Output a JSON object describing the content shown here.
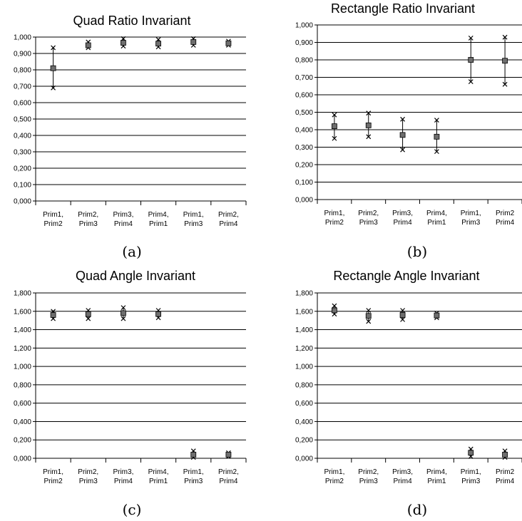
{
  "chart_data": [
    {
      "type": "scatter",
      "title": "Quad Ratio Invariant",
      "caption": "(a)",
      "categories": [
        [
          "Prim1,",
          "Prim2"
        ],
        [
          "Prim2,",
          "Prim3"
        ],
        [
          "Prim3,",
          "Prim4"
        ],
        [
          "Prim4,",
          "Prim1"
        ],
        [
          "Prim1,",
          "Prim3"
        ],
        [
          "Prim2,",
          "Prim4"
        ]
      ],
      "yticks": [
        "0,000",
        "0,100",
        "0,200",
        "0,300",
        "0,400",
        "0,500",
        "0,600",
        "0,700",
        "0,800",
        "0,900",
        "1,000"
      ],
      "ylim": [
        0,
        1.0
      ],
      "grid": true,
      "mean": [
        0.81,
        0.95,
        0.965,
        0.96,
        0.97,
        0.962
      ],
      "min": [
        0.69,
        0.935,
        0.945,
        0.94,
        0.95,
        0.95
      ],
      "max": [
        0.935,
        0.97,
        0.99,
        0.985,
        0.99,
        0.975
      ]
    },
    {
      "type": "scatter",
      "title": "Rectangle Ratio Invariant",
      "caption": "(b)",
      "categories": [
        [
          "Prim1,",
          "Prim2"
        ],
        [
          "Prim2,",
          "Prim3"
        ],
        [
          "Prim3,",
          "Prim4"
        ],
        [
          "Prim4,",
          "Prim1"
        ],
        [
          "Prim1,",
          "Prim3"
        ],
        [
          "Prim2",
          "Prim4"
        ]
      ],
      "yticks": [
        "0,000",
        "0,100",
        "0,200",
        "0,300",
        "0,400",
        "0,500",
        "0,600",
        "0,700",
        "0,800",
        "0,900",
        "1,000"
      ],
      "ylim": [
        0,
        1.0
      ],
      "grid": true,
      "mean": [
        0.42,
        0.425,
        0.37,
        0.36,
        0.8,
        0.795
      ],
      "min": [
        0.35,
        0.36,
        0.285,
        0.275,
        0.675,
        0.66
      ],
      "max": [
        0.485,
        0.495,
        0.46,
        0.455,
        0.925,
        0.93
      ]
    },
    {
      "type": "scatter",
      "title": "Quad Angle Invariant",
      "caption": "(c)",
      "categories": [
        [
          "Prim1,",
          "Prim2"
        ],
        [
          "Prim2,",
          "Prim3"
        ],
        [
          "Prim3,",
          "Prim4"
        ],
        [
          "Prim4,",
          "Prim1"
        ],
        [
          "Prim1,",
          "Prim3"
        ],
        [
          "Prim2,",
          "Prim4"
        ]
      ],
      "yticks": [
        "0,000",
        "0,200",
        "0,400",
        "0,600",
        "0,800",
        "1,000",
        "1,200",
        "1,400",
        "1,600",
        "1,800"
      ],
      "ylim": [
        0,
        1.8
      ],
      "grid": true,
      "mean": [
        1.56,
        1.57,
        1.58,
        1.57,
        0.04,
        0.04
      ],
      "min": [
        1.52,
        1.52,
        1.52,
        1.53,
        0.01,
        0.02
      ],
      "max": [
        1.6,
        1.61,
        1.64,
        1.61,
        0.08,
        0.06
      ]
    },
    {
      "type": "scatter",
      "title": "Rectangle Angle Invariant",
      "caption": "(d)",
      "categories": [
        [
          "Prim1,",
          "Prim2"
        ],
        [
          "Prim2,",
          "Prim3"
        ],
        [
          "Prim3,",
          "Prim4"
        ],
        [
          "Prim4,",
          "Prim1"
        ],
        [
          "Prim1,",
          "Prim3"
        ],
        [
          "Prim2",
          "Prim4"
        ]
      ],
      "yticks": [
        "0,000",
        "0,200",
        "0,400",
        "0,600",
        "0,800",
        "1,000",
        "1,200",
        "1,400",
        "1,600",
        "1,800"
      ],
      "ylim": [
        0,
        1.8
      ],
      "grid": true,
      "mean": [
        1.61,
        1.55,
        1.56,
        1.555,
        0.06,
        0.04
      ],
      "min": [
        1.57,
        1.49,
        1.51,
        1.53,
        0.02,
        0.01
      ],
      "max": [
        1.66,
        1.61,
        1.61,
        1.58,
        0.1,
        0.08
      ]
    }
  ]
}
